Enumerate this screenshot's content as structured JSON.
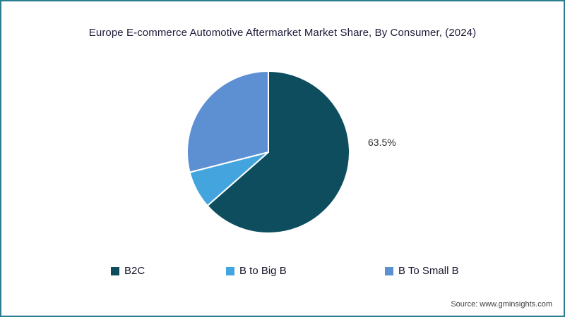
{
  "title": "Europe E-commerce Automotive Aftermarket Market Share, By Consumer, (2024)",
  "source": "Source: www.gminsights.com",
  "frame": {
    "border_color": "#2b7e90",
    "background": "#ffffff"
  },
  "chart_data": {
    "type": "pie",
    "title": "Europe E-commerce Automotive Aftermarket Market Share, By Consumer, (2024)",
    "series": [
      {
        "name": "B2C",
        "value": 63.5,
        "color": "#0d4d5e"
      },
      {
        "name": "B to Big B",
        "value": 7.5,
        "color": "#44a5de"
      },
      {
        "name": "B To Small B",
        "value": 29.0,
        "color": "#5d8fd3"
      }
    ],
    "start_angle_deg": -90,
    "direction": "clockwise",
    "slice_stroke_color": "#ffffff",
    "data_label": {
      "text": "63.5%",
      "applies_to": "B2C",
      "position": "right-of-pie"
    },
    "legend_position": "bottom"
  }
}
